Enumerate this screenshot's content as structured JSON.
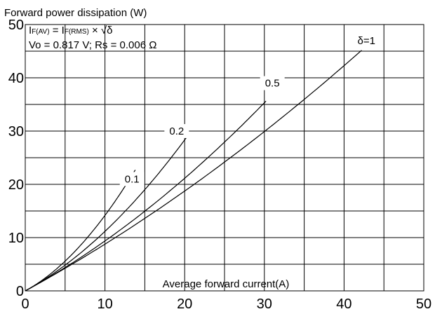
{
  "chart_data": {
    "type": "line",
    "ylabel": "Forward power dissipation (W)",
    "xlabel": "Average forward current(A)",
    "xlim": [
      0,
      50
    ],
    "ylim": [
      0,
      50
    ],
    "x_ticks": [
      0,
      10,
      20,
      30,
      40,
      50
    ],
    "y_ticks": [
      0,
      10,
      20,
      30,
      40,
      50
    ],
    "x_tick_labels": [
      "0",
      "10",
      "20",
      "30",
      "40",
      "50"
    ],
    "y_tick_labels": [
      "0",
      "10",
      "20",
      "30",
      "40",
      "50"
    ],
    "x_grid": [
      0,
      5,
      10,
      15,
      20,
      25,
      30,
      35,
      40,
      45,
      50
    ],
    "y_grid": [
      0,
      5,
      10,
      15,
      20,
      25,
      30,
      35,
      40,
      45,
      50
    ],
    "grid": true,
    "annotation": {
      "line1": {
        "a": "I",
        "a_sub": "F(AV)",
        "b": " = I",
        "b_sub": "F(RMS)",
        "c": " × √δ"
      },
      "line2": "Vo = 0.817 V; Rs = 0.006 Ω"
    },
    "model": {
      "Vo": 0.817,
      "Rs": 0.006
    },
    "series": [
      {
        "label": "δ=1",
        "delta": 1,
        "x_max": 42.2,
        "label_x": 42.8,
        "label_y": 47.0
      },
      {
        "label": "0.5",
        "delta": 0.5,
        "x_max": 30.2,
        "label_x": 31.0,
        "label_y": 39.0
      },
      {
        "label": "0.2",
        "delta": 0.2,
        "x_max": 20.3,
        "label_x": 19.0,
        "label_y": 30.0
      },
      {
        "label": "0.1",
        "delta": 0.1,
        "x_max": 13.8,
        "label_x": 13.4,
        "label_y": 21.0
      }
    ]
  }
}
